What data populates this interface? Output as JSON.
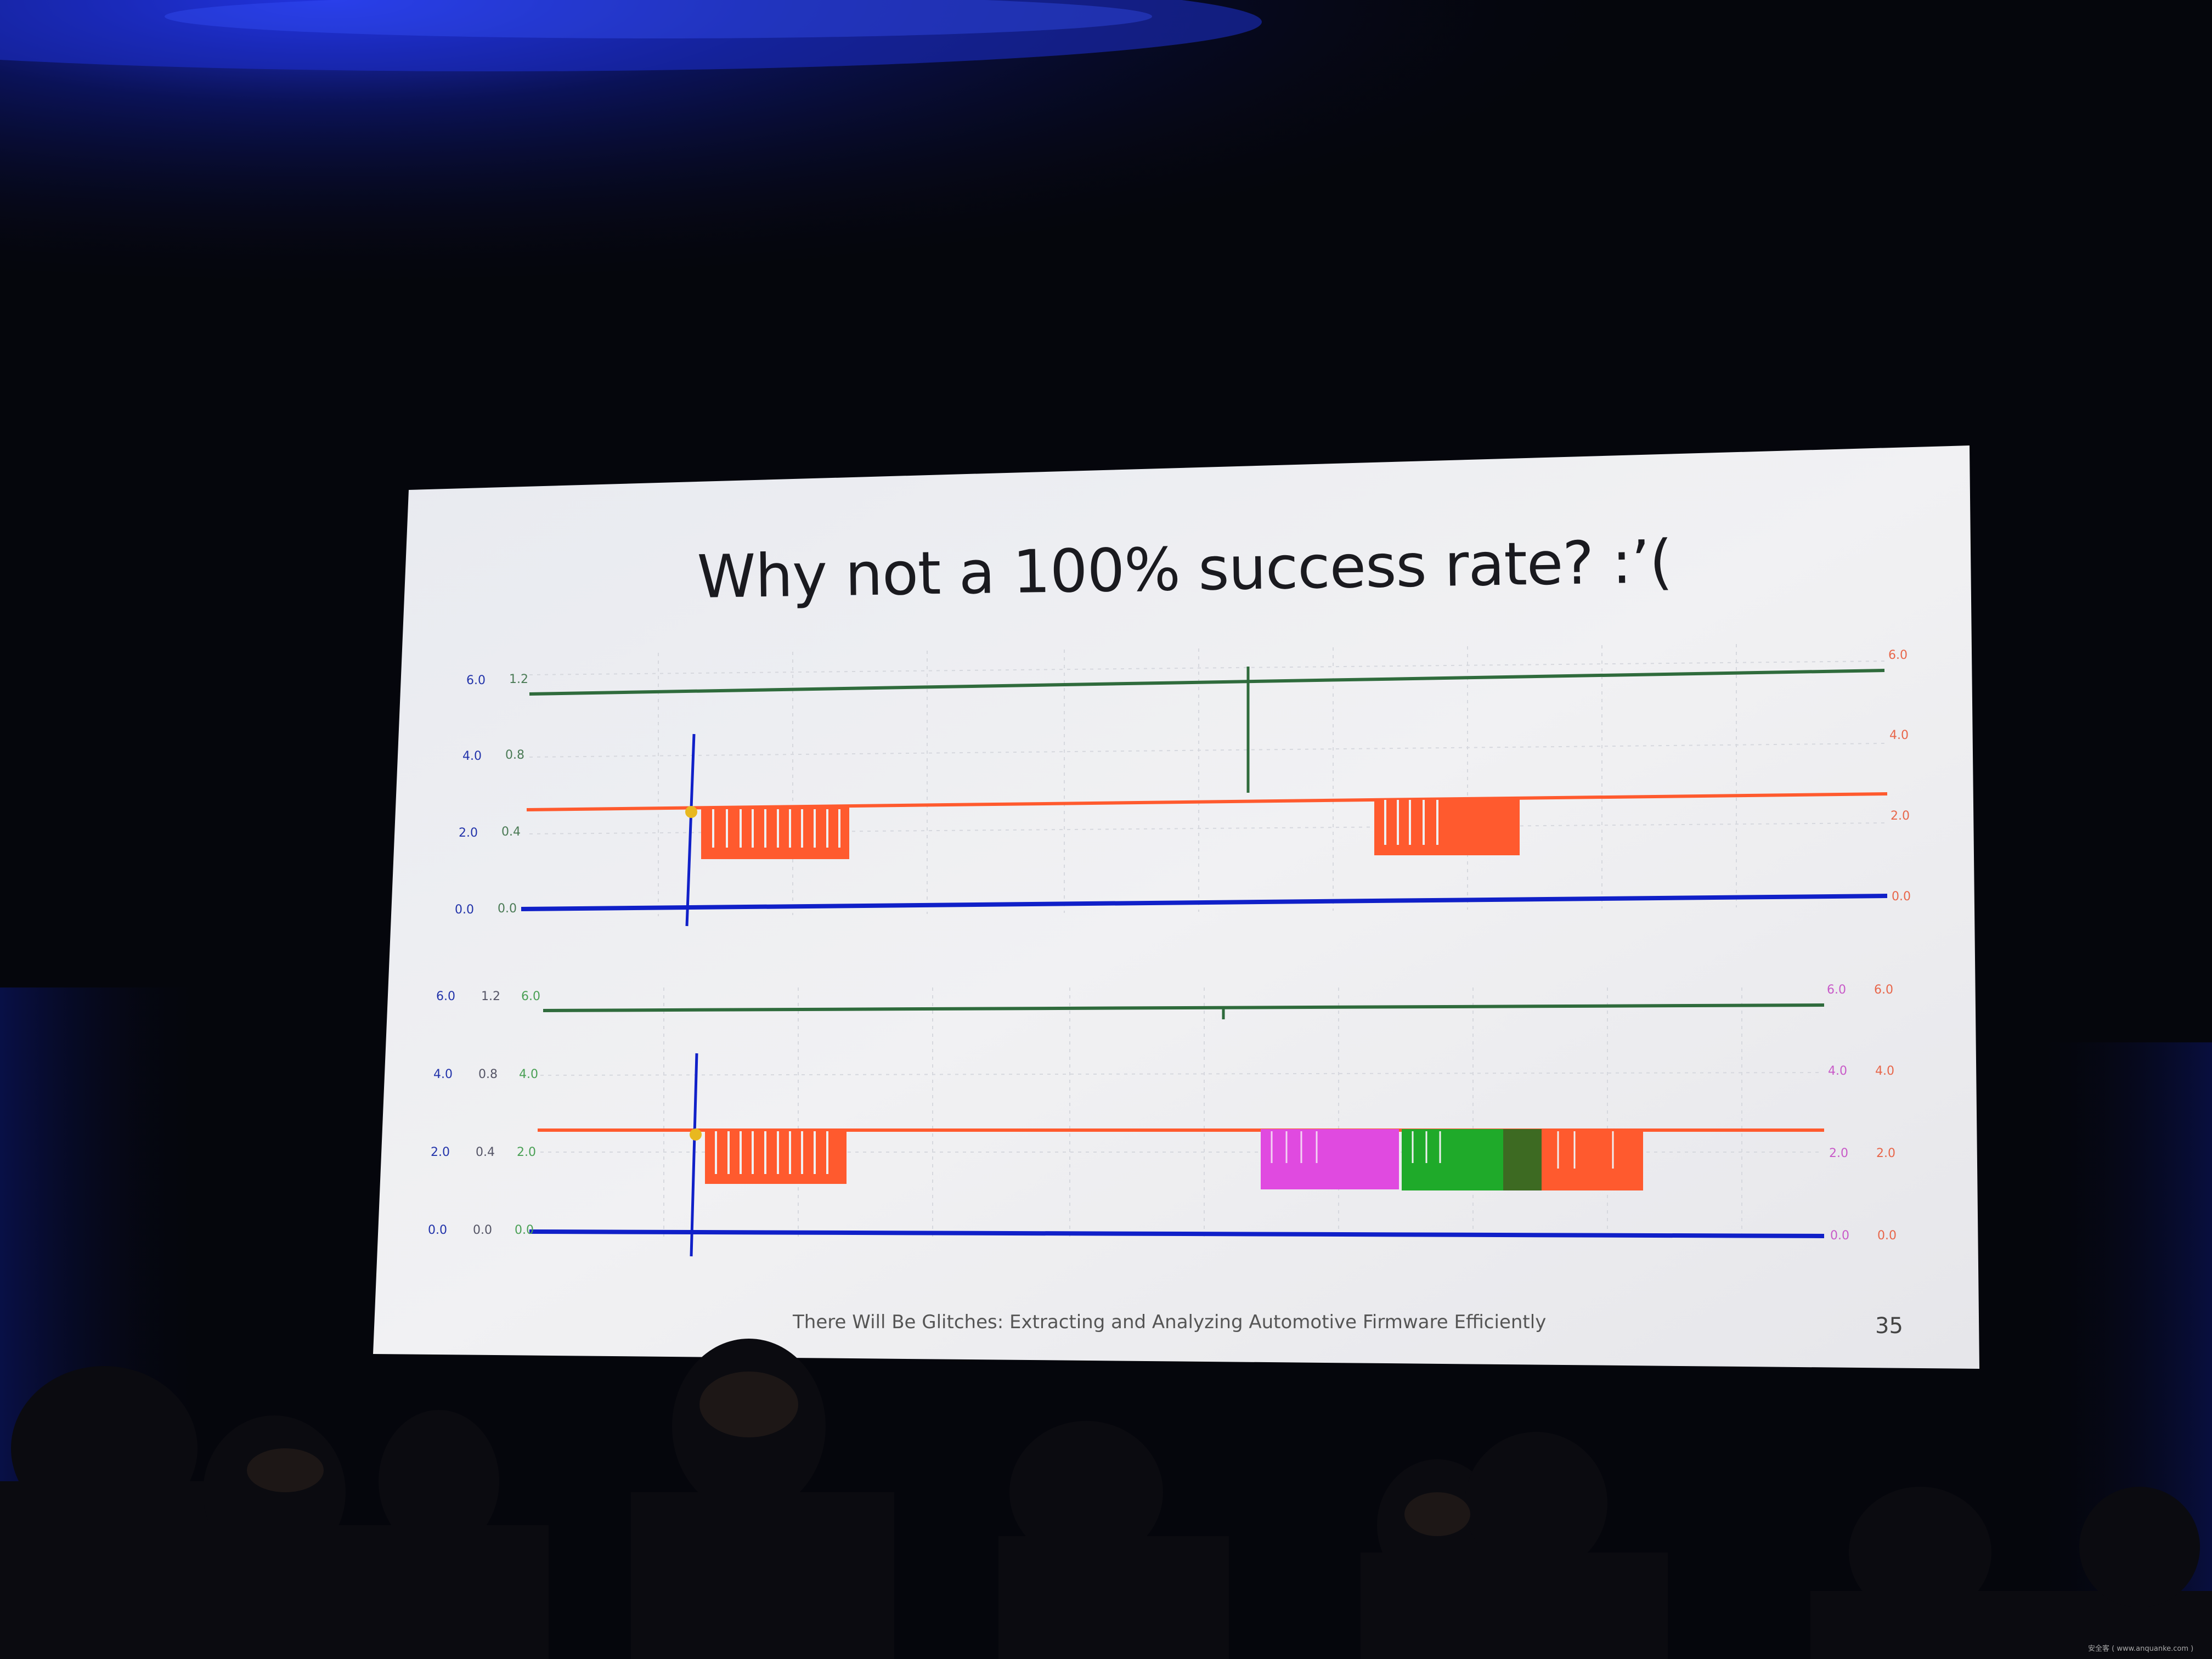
{
  "slide": {
    "title": "Why not a 100% success rate? :’(",
    "footer": "There Will Be Glitches: Extracting and Analyzing Automotive Firmware Efficiently",
    "page_number": "35"
  },
  "top_plot": {
    "blue_ticks": [
      "6.0",
      "4.0",
      "2.0",
      "0.0"
    ],
    "green_ticks": [
      "1.2",
      "0.8",
      "0.4",
      "0.0"
    ],
    "right_ticks": [
      "6.0",
      "4.0",
      "2.0",
      "0.0"
    ]
  },
  "bottom_plot": {
    "blue_ticks": [
      "6.0",
      "4.0",
      "2.0",
      "0.0"
    ],
    "gray_ticks": [
      "1.2",
      "0.8",
      "0.4",
      "0.0"
    ],
    "green_ticks": [
      "6.0",
      "4.0",
      "2.0",
      "0.0"
    ],
    "magenta_ticks": [
      "6.0",
      "4.0",
      "2.0",
      "0.0"
    ],
    "orange_ticks": [
      "6.0",
      "4.0",
      "2.0",
      "0.0"
    ]
  },
  "watermark": "安全客 ( www.anquanke.com )",
  "colors": {
    "trace_green": "#2f6b3c",
    "trace_orange": "#ff5a2e",
    "trace_blue": "#1020c8",
    "trace_magenta": "#e04ae0",
    "trace_bright_green": "#1faa2a",
    "stage_light": "#1633d6"
  }
}
